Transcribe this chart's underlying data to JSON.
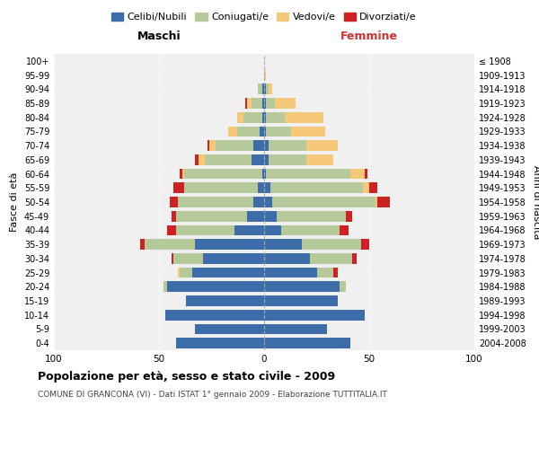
{
  "age_groups": [
    "0-4",
    "5-9",
    "10-14",
    "15-19",
    "20-24",
    "25-29",
    "30-34",
    "35-39",
    "40-44",
    "45-49",
    "50-54",
    "55-59",
    "60-64",
    "65-69",
    "70-74",
    "75-79",
    "80-84",
    "85-89",
    "90-94",
    "95-99",
    "100+"
  ],
  "birth_years": [
    "2004-2008",
    "1999-2003",
    "1994-1998",
    "1989-1993",
    "1984-1988",
    "1979-1983",
    "1974-1978",
    "1969-1973",
    "1964-1968",
    "1959-1963",
    "1954-1958",
    "1949-1953",
    "1944-1948",
    "1939-1943",
    "1934-1938",
    "1929-1933",
    "1924-1928",
    "1919-1923",
    "1914-1918",
    "1909-1913",
    "≤ 1908"
  ],
  "maschi": {
    "celibi": [
      42,
      33,
      47,
      37,
      46,
      34,
      29,
      33,
      14,
      8,
      5,
      3,
      1,
      6,
      5,
      2,
      1,
      1,
      1,
      0,
      0
    ],
    "coniugati": [
      0,
      0,
      0,
      0,
      2,
      6,
      14,
      24,
      28,
      34,
      36,
      35,
      37,
      22,
      18,
      11,
      9,
      5,
      2,
      0,
      0
    ],
    "vedovi": [
      0,
      0,
      0,
      0,
      0,
      1,
      0,
      0,
      0,
      0,
      0,
      0,
      1,
      3,
      3,
      4,
      3,
      2,
      0,
      0,
      0
    ],
    "divorziati": [
      0,
      0,
      0,
      0,
      0,
      0,
      1,
      2,
      4,
      2,
      4,
      5,
      1,
      2,
      1,
      0,
      0,
      1,
      0,
      0,
      0
    ]
  },
  "femmine": {
    "nubili": [
      41,
      30,
      48,
      35,
      36,
      25,
      22,
      18,
      8,
      6,
      4,
      3,
      1,
      2,
      2,
      1,
      1,
      1,
      1,
      0,
      0
    ],
    "coniugate": [
      0,
      0,
      0,
      0,
      3,
      8,
      20,
      28,
      28,
      33,
      49,
      44,
      40,
      18,
      18,
      12,
      9,
      4,
      1,
      0,
      0
    ],
    "vedove": [
      0,
      0,
      0,
      0,
      0,
      0,
      0,
      0,
      0,
      0,
      1,
      3,
      7,
      13,
      15,
      16,
      18,
      10,
      2,
      1,
      0
    ],
    "divorziate": [
      0,
      0,
      0,
      0,
      0,
      2,
      2,
      4,
      4,
      3,
      6,
      4,
      1,
      0,
      0,
      0,
      0,
      0,
      0,
      0,
      0
    ]
  },
  "colors": {
    "celibi": "#3d6da8",
    "coniugati": "#b5c99a",
    "vedovi": "#f5c87a",
    "divorziati": "#cc2222"
  },
  "xlim": 100,
  "title": "Popolazione per età, sesso e stato civile - 2009",
  "subtitle": "COMUNE DI GRANCONA (VI) - Dati ISTAT 1° gennaio 2009 - Elaborazione TUTTITALIA.IT",
  "xlabel_left": "Maschi",
  "xlabel_right": "Femmine",
  "ylabel_left": "Fasce di età",
  "ylabel_right": "Anni di nascita",
  "legend_labels": [
    "Celibi/Nubili",
    "Coniugati/e",
    "Vedovi/e",
    "Divorziati/e"
  ],
  "background_color": "#ffffff",
  "plot_bg_color": "#f0f0f0",
  "grid_color": "#ffffff"
}
